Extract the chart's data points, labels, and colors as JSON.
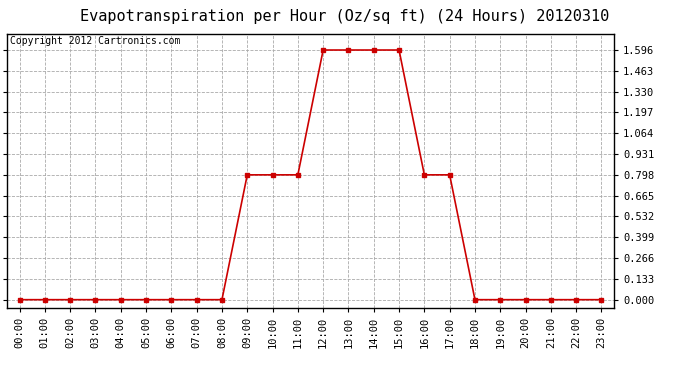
{
  "title": "Evapotranspiration per Hour (Oz/sq ft) (24 Hours) 20120310",
  "copyright": "Copyright 2012 Cartronics.com",
  "hours": [
    0,
    1,
    2,
    3,
    4,
    5,
    6,
    7,
    8,
    9,
    10,
    11,
    12,
    13,
    14,
    15,
    16,
    17,
    18,
    19,
    20,
    21,
    22,
    23
  ],
  "values": [
    0.0,
    0.0,
    0.0,
    0.0,
    0.0,
    0.0,
    0.0,
    0.0,
    0.0,
    0.798,
    0.798,
    0.798,
    1.596,
    1.596,
    1.596,
    1.596,
    0.798,
    0.798,
    0.0,
    0.0,
    0.0,
    0.0,
    0.0,
    0.0
  ],
  "yticks": [
    0.0,
    0.133,
    0.266,
    0.399,
    0.532,
    0.665,
    0.798,
    0.931,
    1.064,
    1.197,
    1.33,
    1.463,
    1.596
  ],
  "ylim": [
    -0.05,
    1.7
  ],
  "xlim": [
    -0.5,
    23.5
  ],
  "line_color": "#cc0000",
  "marker": "s",
  "marker_size": 3,
  "bg_color": "#ffffff",
  "plot_bg_color": "#ffffff",
  "grid_color": "#aaaaaa",
  "title_fontsize": 11,
  "tick_fontsize": 7.5,
  "copyright_fontsize": 7
}
